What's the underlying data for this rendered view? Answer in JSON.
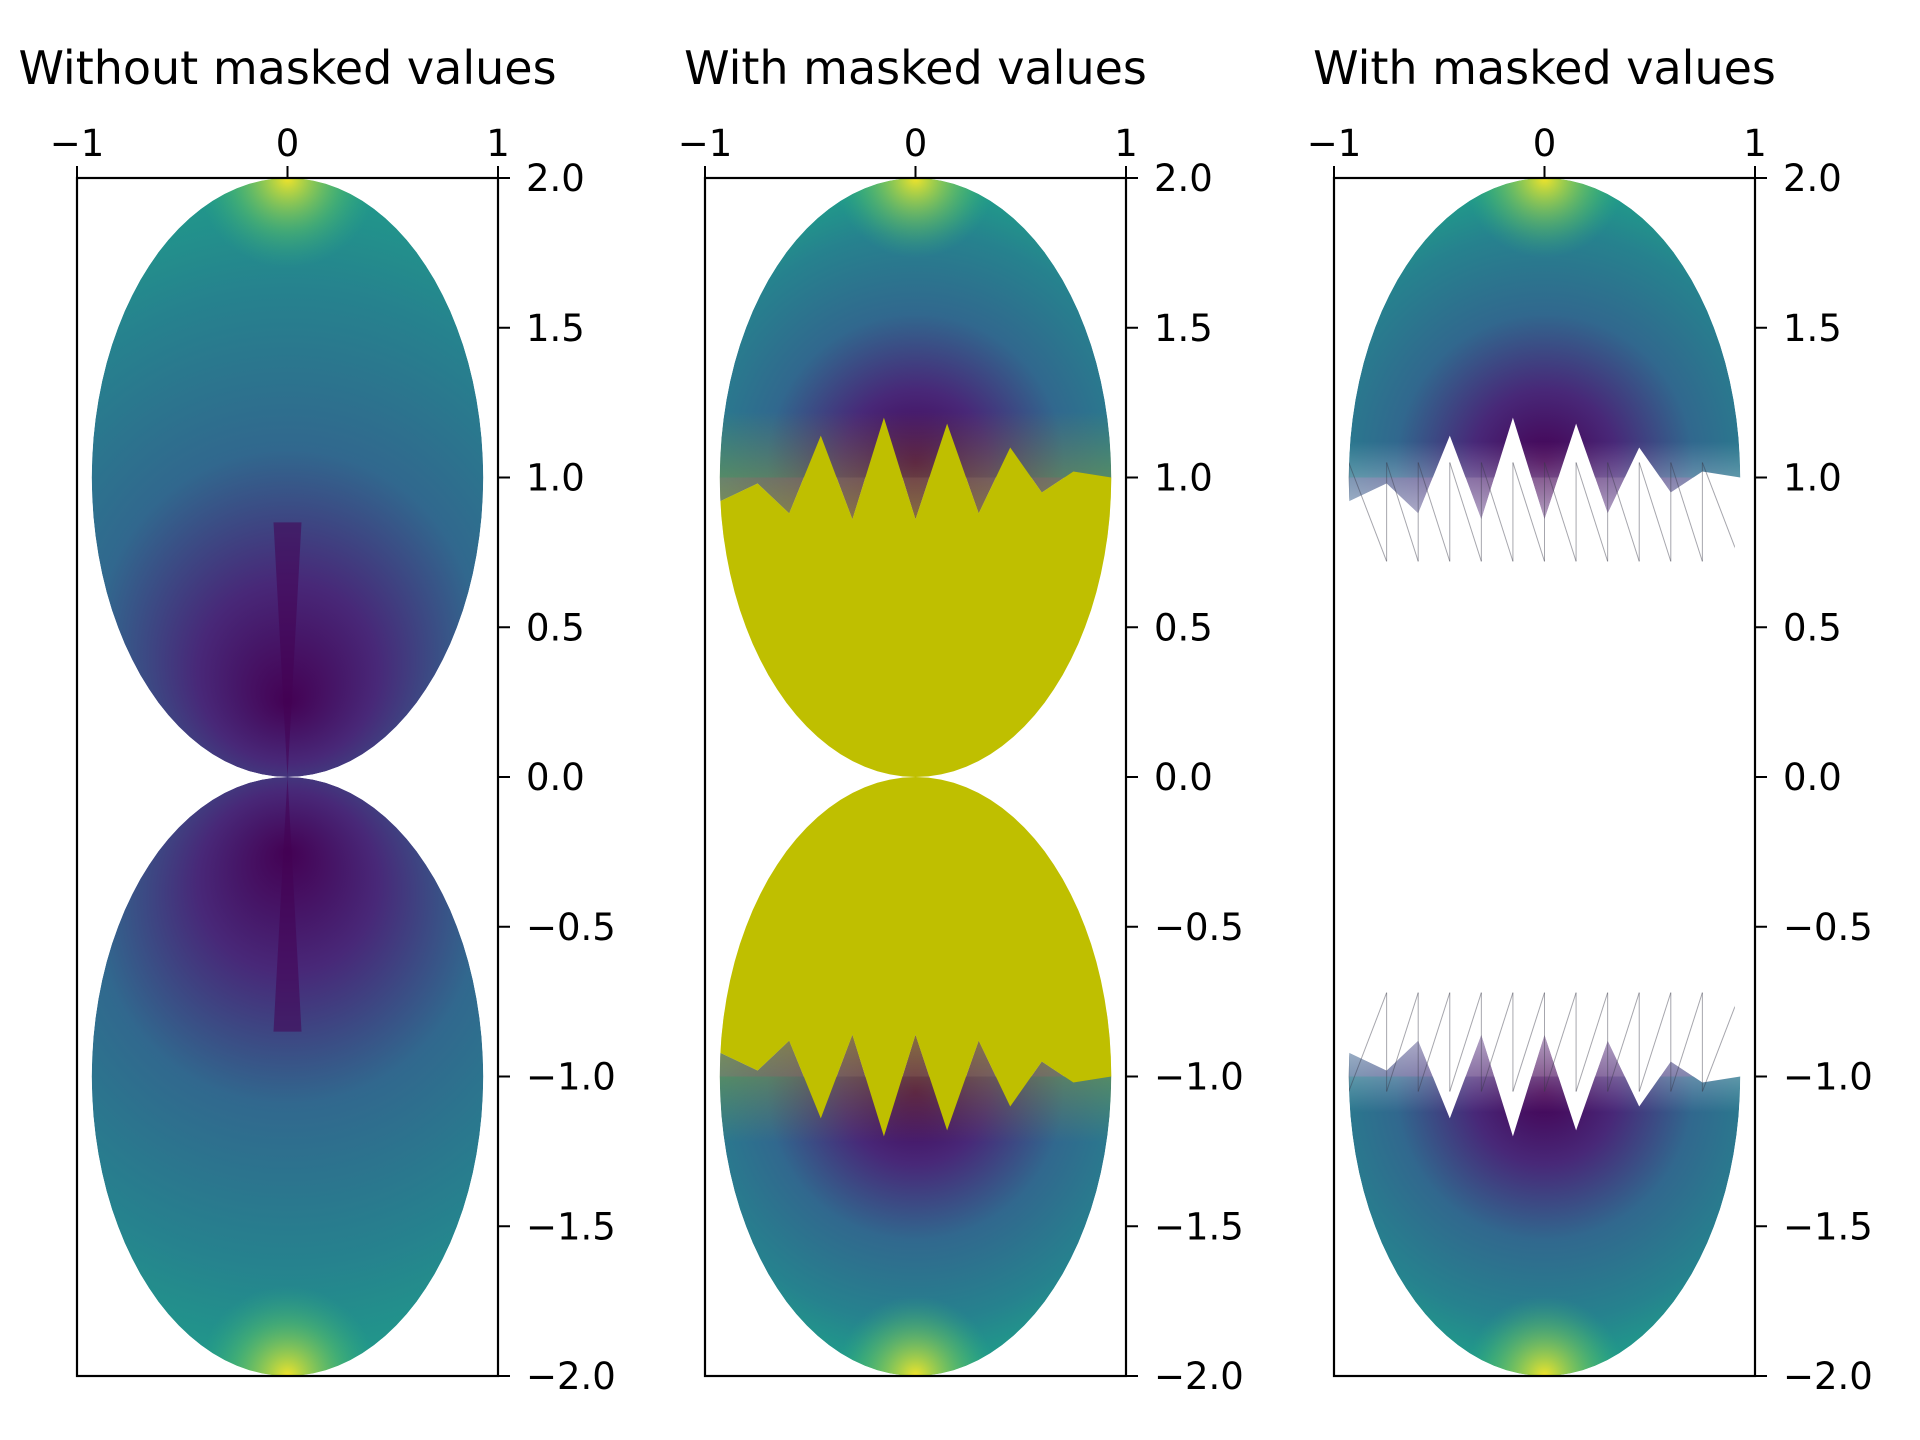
{
  "colors": {
    "viridis": [
      "#440154",
      "#482878",
      "#3e4989",
      "#31688e",
      "#26828e",
      "#1f9e89",
      "#35b779",
      "#6ece58",
      "#b5de2b",
      "#fde725"
    ],
    "masked_fill": "#bfbf00",
    "axes": "#000000",
    "mesh_line": "#3a3a4a"
  },
  "chart_data": [
    {
      "type": "heatmap",
      "title": "Without masked values",
      "xlabel": "",
      "ylabel": "",
      "xlim": [
        -1,
        1
      ],
      "ylim": [
        -2.0,
        2.0
      ],
      "xticks": [
        -1,
        0,
        1
      ],
      "xtick_labels": [
        "−1",
        "0",
        "1"
      ],
      "x_axis_position": "top",
      "yticks": [
        2.0,
        1.5,
        1.0,
        0.5,
        0.0,
        -0.5,
        -1.0,
        -1.5,
        -2.0
      ],
      "ytick_labels": [
        "2.0",
        "1.5",
        "1.0",
        "0.5",
        "0.0",
        "−0.5",
        "−1.0",
        "−1.5",
        "−2.0"
      ],
      "y_axis_position": "right",
      "colormap": "viridis",
      "masked_region": "none"
    },
    {
      "type": "heatmap",
      "title": "With masked values",
      "xlabel": "",
      "ylabel": "",
      "xlim": [
        -1,
        1
      ],
      "ylim": [
        -2.0,
        2.0
      ],
      "xticks": [
        -1,
        0,
        1
      ],
      "xtick_labels": [
        "−1",
        "0",
        "1"
      ],
      "x_axis_position": "top",
      "yticks": [
        2.0,
        1.5,
        1.0,
        0.5,
        0.0,
        -0.5,
        -1.0,
        -1.5,
        -2.0
      ],
      "ytick_labels": [
        "2.0",
        "1.5",
        "1.0",
        "0.5",
        "0.0",
        "−0.5",
        "−1.0",
        "−1.5",
        "−2.0"
      ],
      "y_axis_position": "right",
      "colormap": "viridis",
      "masked_region": "filled",
      "masked_color": "#bfbf00",
      "mask_y_range": [
        -1.0,
        1.0
      ]
    },
    {
      "type": "heatmap",
      "title": "With masked values",
      "xlabel": "",
      "ylabel": "",
      "xlim": [
        -1,
        1
      ],
      "ylim": [
        -2.0,
        2.0
      ],
      "xticks": [
        -1,
        0,
        1
      ],
      "xtick_labels": [
        "−1",
        "0",
        "1"
      ],
      "x_axis_position": "top",
      "yticks": [
        2.0,
        1.5,
        1.0,
        0.5,
        0.0,
        -0.5,
        -1.0,
        -1.5,
        -2.0
      ],
      "ytick_labels": [
        "2.0",
        "1.5",
        "1.0",
        "0.5",
        "0.0",
        "−0.5",
        "−1.0",
        "−1.5",
        "−2.0"
      ],
      "y_axis_position": "right",
      "colormap": "viridis",
      "masked_region": "transparent",
      "mask_y_range": [
        -1.0,
        1.0
      ]
    }
  ]
}
